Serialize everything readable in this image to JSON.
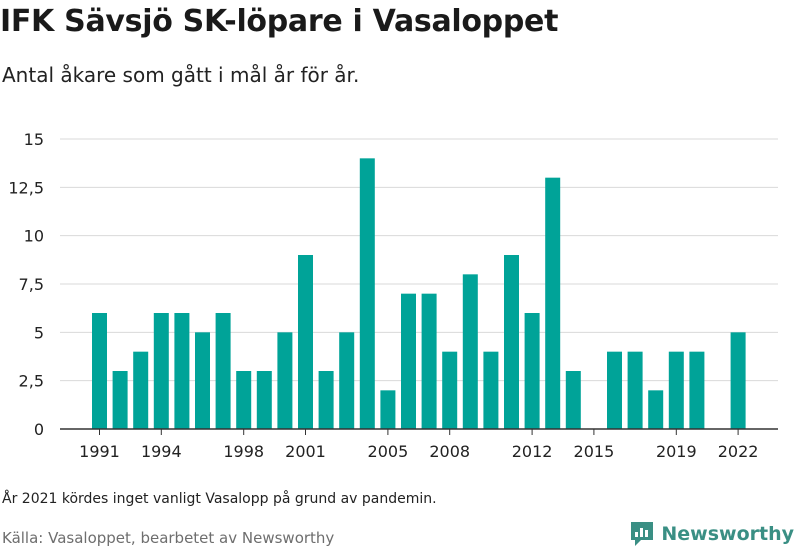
{
  "title": "IFK Sävsjö SK-löpare i Vasaloppet",
  "subtitle": "Antal åkare som gått i mål år för år.",
  "note": "År 2021 kördes inget vanligt Vasalopp på grund av pandemin.",
  "source": "Källa: Vasaloppet, bearbetet av Newsworthy",
  "brand": {
    "name": "Newsworthy",
    "icon": "newsworthy-logo-icon",
    "color": "#3a8f84"
  },
  "chart_data": {
    "type": "bar",
    "x": [
      1991,
      1992,
      1993,
      1994,
      1995,
      1996,
      1997,
      1998,
      1999,
      2000,
      2001,
      2002,
      2003,
      2004,
      2005,
      2006,
      2007,
      2008,
      2009,
      2010,
      2011,
      2012,
      2013,
      2014,
      2015,
      2016,
      2017,
      2018,
      2019,
      2020,
      2021,
      2022
    ],
    "values": [
      6,
      3,
      4,
      6,
      6,
      5,
      6,
      3,
      3,
      5,
      9,
      3,
      5,
      14,
      2,
      7,
      7,
      4,
      8,
      4,
      9,
      6,
      13,
      3,
      0,
      4,
      4,
      2,
      4,
      4,
      null,
      5
    ],
    "x_tick_labels": [
      "1991",
      "1994",
      "1998",
      "2001",
      "2005",
      "2008",
      "2012",
      "2015",
      "2019",
      "2022"
    ],
    "y_tick_labels": [
      "0",
      "2,5",
      "5",
      "7,5",
      "10",
      "12,5",
      "15"
    ],
    "y_ticks": [
      0,
      2.5,
      5,
      7.5,
      10,
      12.5,
      15
    ],
    "ylim": [
      0,
      15
    ],
    "bar_color": "#00a398",
    "grid": true,
    "legend": "none"
  }
}
